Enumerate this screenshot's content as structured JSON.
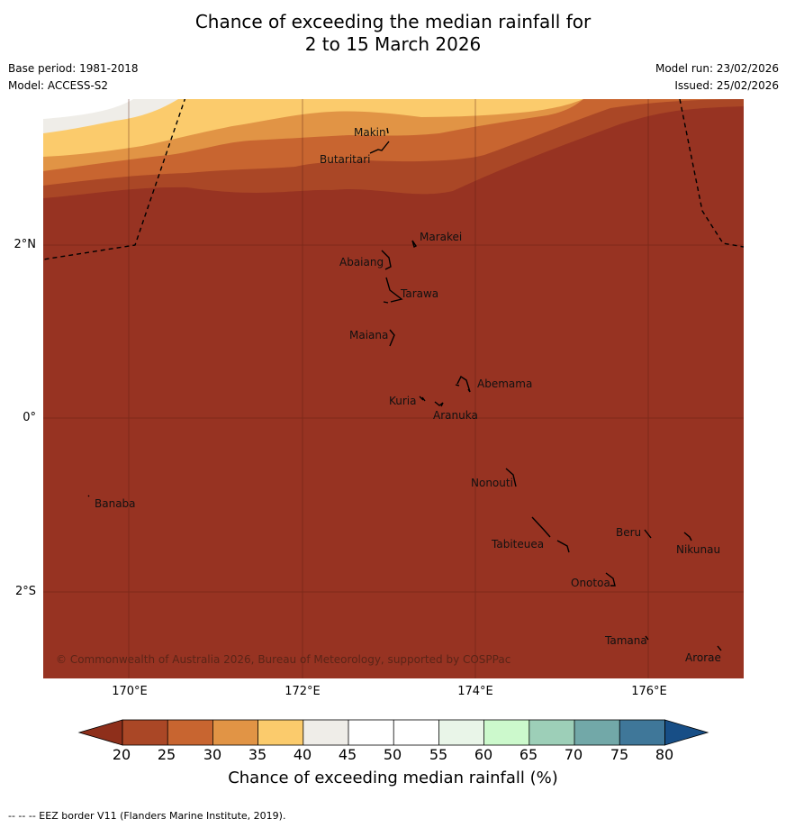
{
  "title": {
    "line1": "Chance of exceeding the median rainfall for",
    "line2": "2 to 15 March 2026"
  },
  "meta": {
    "base_period": "Base period: 1981-2018",
    "model": "Model: ACCESS-S2",
    "model_run": "Model run: 23/02/2026",
    "issued": "Issued: 25/02/2026"
  },
  "axes": {
    "lat_labels": [
      "2°N",
      "0°",
      "2°S"
    ],
    "lon_labels": [
      "170°E",
      "172°E",
      "174°E",
      "176°E"
    ]
  },
  "places": [
    {
      "name": "Makin"
    },
    {
      "name": "Butaritari"
    },
    {
      "name": "Marakei"
    },
    {
      "name": "Abaiang"
    },
    {
      "name": "Tarawa"
    },
    {
      "name": "Maiana"
    },
    {
      "name": "Abemama"
    },
    {
      "name": "Kuria"
    },
    {
      "name": "Aranuka"
    },
    {
      "name": "Nonouti"
    },
    {
      "name": "Banaba"
    },
    {
      "name": "Beru"
    },
    {
      "name": "Nikunau"
    },
    {
      "name": "Tabiteuea"
    },
    {
      "name": "Onotoa"
    },
    {
      "name": "Tamana"
    },
    {
      "name": "Arorae"
    }
  ],
  "copyright": "© Commonwealth of Australia 2026, Bureau of Meteorology, supported by COSPPac",
  "colorbar": {
    "ticks": [
      "20",
      "25",
      "30",
      "35",
      "40",
      "45",
      "50",
      "55",
      "60",
      "65",
      "70",
      "75",
      "80"
    ],
    "label": "Chance of exceeding median rainfall (%)",
    "colors": {
      "under": "#8e2f1b",
      "20-25": "#aa4726",
      "25-30": "#c86530",
      "30-35": "#e19445",
      "35-40": "#fbcb6c",
      "40-45": "#efede8",
      "45-50": "#ffffff",
      "50-55": "#ffffff",
      "55-60": "#e9f5e8",
      "60-65": "#ccf9cc",
      "65-70": "#9dcfb8",
      "70-75": "#72a8a8",
      "75-80": "#3f7799",
      "over": "#174e86"
    }
  },
  "footnote": "-- -- -- EEZ border V11 (Flanders Marine Institute, 2019)."
}
